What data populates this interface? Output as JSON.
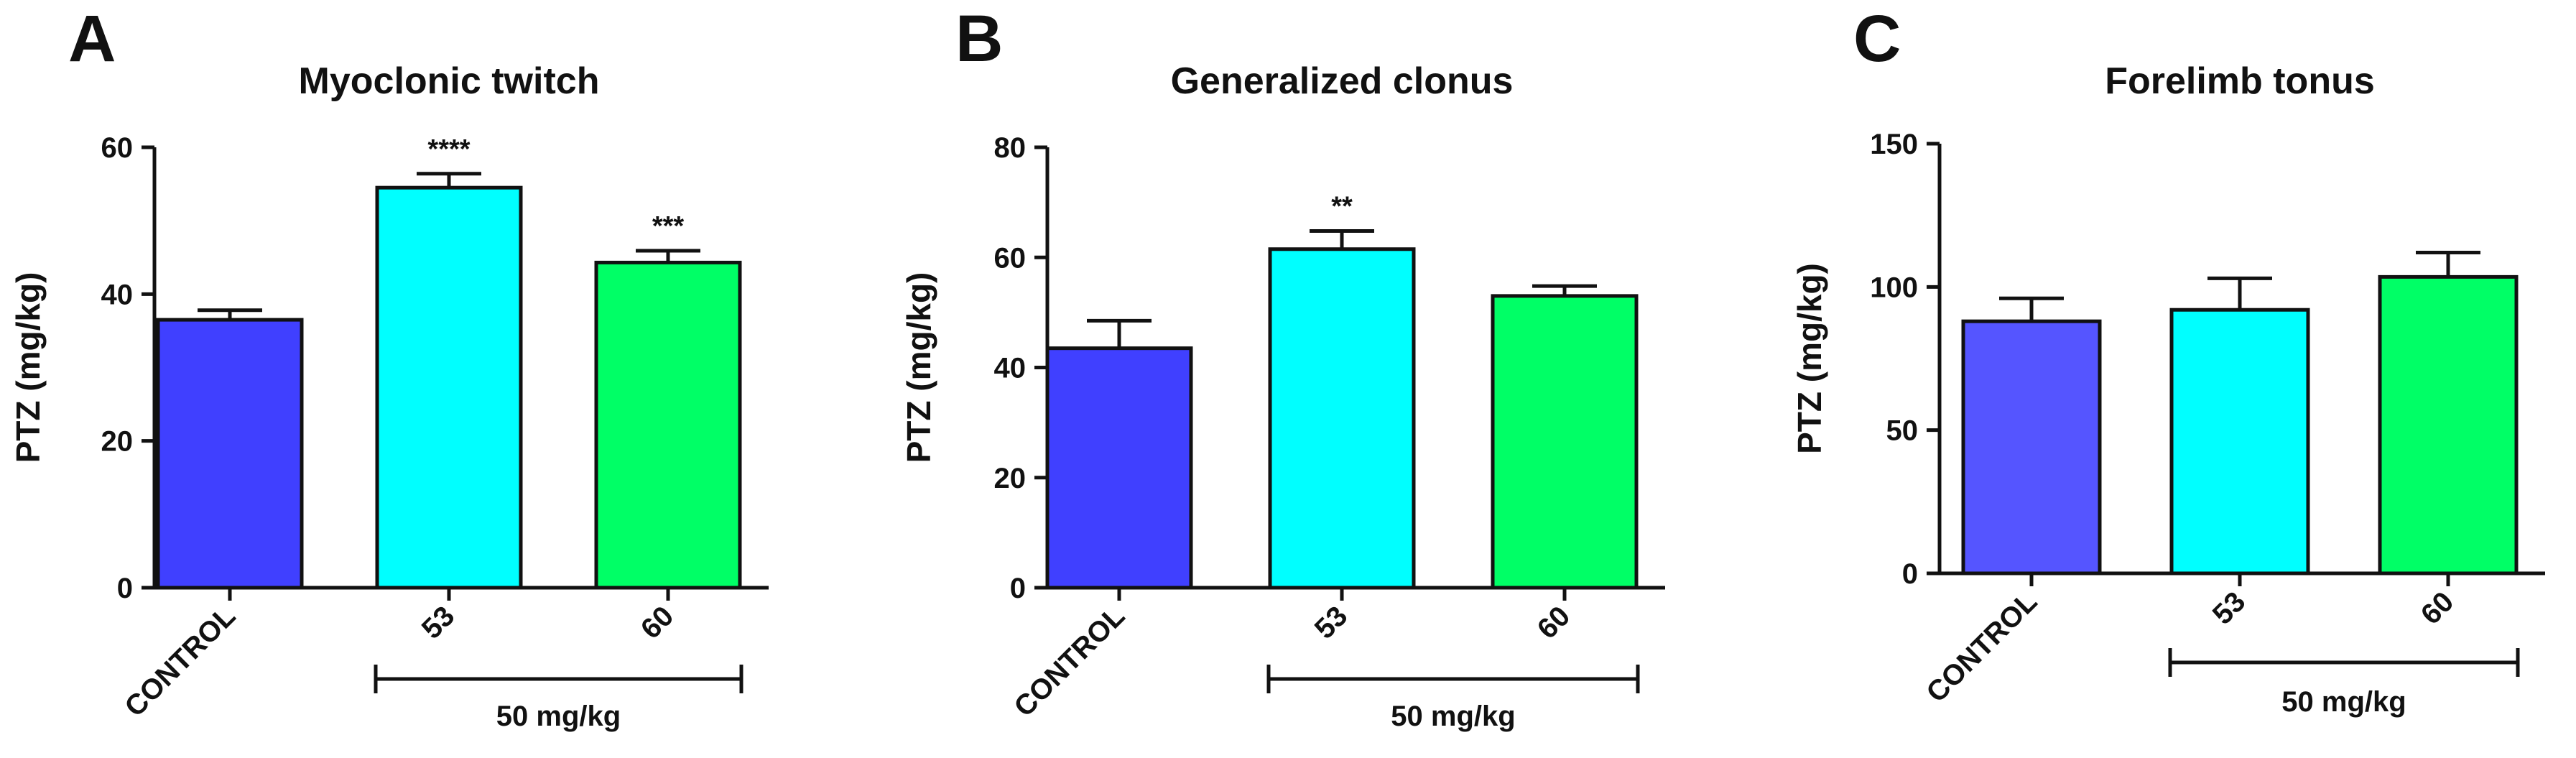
{
  "chart_data": [
    {
      "type": "bar",
      "panel": "A",
      "title": "Myoclonic twitch",
      "ylabel": "PTZ (mg/kg)",
      "ylim": [
        0,
        60
      ],
      "yticks": [
        0,
        20,
        40,
        60
      ],
      "categories": [
        "CONTROL",
        "53",
        "60"
      ],
      "values": [
        36.5,
        54.5,
        44.3
      ],
      "errors": [
        1.3,
        1.9,
        1.6
      ],
      "significance": [
        "",
        "****",
        "***"
      ],
      "colors": [
        "#4040ff",
        "#00ffff",
        "#00ff66"
      ],
      "group": {
        "label": "50 mg/kg",
        "from": 1,
        "to": 2
      }
    },
    {
      "type": "bar",
      "panel": "B",
      "title": "Generalized clonus",
      "ylabel": "PTZ (mg/kg)",
      "ylim": [
        0,
        80
      ],
      "yticks": [
        0,
        20,
        40,
        60,
        80
      ],
      "categories": [
        "CONTROL",
        "53",
        "60"
      ],
      "values": [
        43.5,
        61.5,
        53.0
      ],
      "errors": [
        5.0,
        3.3,
        1.8
      ],
      "significance": [
        "",
        "**",
        ""
      ],
      "colors": [
        "#4040ff",
        "#00ffff",
        "#00ff66"
      ],
      "group": {
        "label": "50 mg/kg",
        "from": 1,
        "to": 2
      }
    },
    {
      "type": "bar",
      "panel": "C",
      "title": "Forelimb tonus",
      "ylabel": "PTZ (mg/kg)",
      "ylim": [
        0,
        150
      ],
      "yticks": [
        0,
        50,
        100,
        150
      ],
      "categories": [
        "CONTROL",
        "53",
        "60"
      ],
      "values": [
        88.0,
        92.0,
        103.5
      ],
      "errors": [
        8.0,
        11.0,
        8.5
      ],
      "significance": [
        "",
        "",
        ""
      ],
      "colors": [
        "#5555ff",
        "#00ffff",
        "#00ff66"
      ],
      "group": {
        "label": "50 mg/kg",
        "from": 1,
        "to": 2
      }
    }
  ]
}
